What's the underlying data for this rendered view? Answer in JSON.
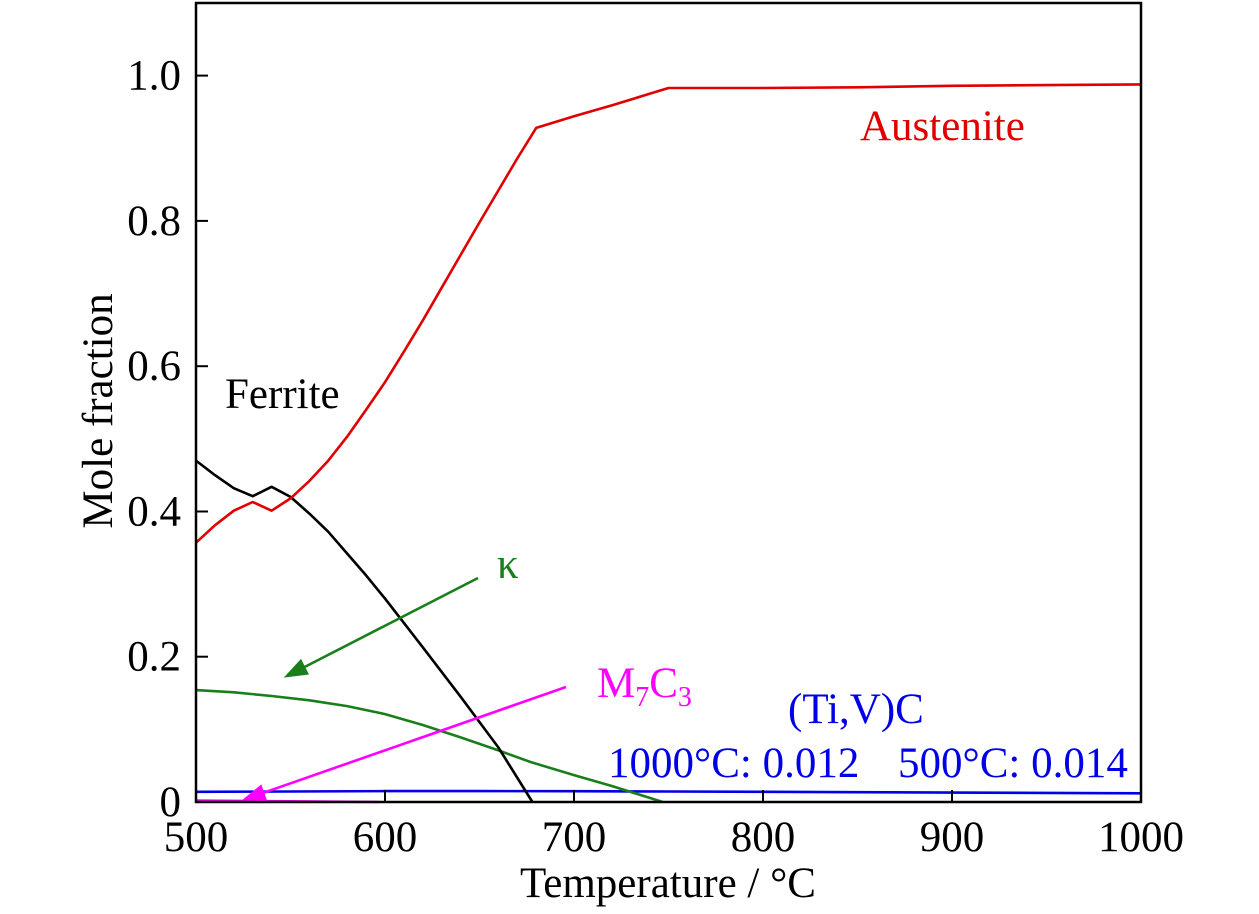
{
  "chart_data": {
    "type": "line",
    "xlabel": "Temperature / °C",
    "ylabel": "Mole fraction",
    "xlim": [
      500,
      1000
    ],
    "ylim": [
      0,
      1.1
    ],
    "xticks": [
      500,
      600,
      700,
      800,
      900,
      1000
    ],
    "xtick_labels": [
      "500",
      "600",
      "700",
      "800",
      "900",
      "1000"
    ],
    "yticks": [
      0,
      0.2,
      0.4,
      0.6,
      0.8,
      1.0
    ],
    "ytick_labels": [
      "0",
      "0.2",
      "0.4",
      "0.6",
      "0.8",
      "1.0"
    ],
    "grid": false,
    "series": [
      {
        "name": "Austenite",
        "color": "#e00000",
        "x": [
          500,
          510,
          520,
          530,
          540,
          550,
          560,
          570,
          580,
          590,
          600,
          610,
          620,
          630,
          640,
          650,
          660,
          670,
          680,
          700,
          720,
          740,
          750,
          800,
          850,
          900,
          950,
          1000
        ],
        "y": [
          0.357,
          0.381,
          0.401,
          0.413,
          0.401,
          0.418,
          0.442,
          0.47,
          0.503,
          0.54,
          0.578,
          0.62,
          0.663,
          0.708,
          0.753,
          0.798,
          0.842,
          0.886,
          0.928,
          0.944,
          0.959,
          0.975,
          0.983,
          0.983,
          0.984,
          0.986,
          0.987,
          0.988
        ]
      },
      {
        "name": "Ferrite",
        "color": "#000000",
        "x": [
          500,
          510,
          520,
          530,
          540,
          550,
          560,
          570,
          580,
          590,
          600,
          620,
          640,
          660,
          678
        ],
        "y": [
          0.47,
          0.45,
          0.432,
          0.421,
          0.434,
          0.42,
          0.397,
          0.372,
          0.342,
          0.312,
          0.28,
          0.213,
          0.145,
          0.075,
          0.0
        ]
      },
      {
        "name": "κ",
        "color": "#1a7f1a",
        "x": [
          500,
          520,
          540,
          560,
          580,
          600,
          620,
          640,
          660,
          677,
          700,
          720,
          747
        ],
        "y": [
          0.154,
          0.151,
          0.146,
          0.14,
          0.132,
          0.121,
          0.106,
          0.089,
          0.071,
          0.055,
          0.037,
          0.022,
          0.0
        ]
      },
      {
        "name": "M7C3",
        "subscript_digits": true,
        "color": "#ff00ff",
        "x": [
          500,
          550,
          597
        ],
        "y": [
          0.002,
          0.001,
          0.0
        ]
      },
      {
        "name": "(Ti,V)C",
        "color": "#0000e6",
        "x": [
          500,
          550,
          600,
          650,
          700,
          750,
          800,
          850,
          900,
          950,
          1000
        ],
        "y": [
          0.014,
          0.0145,
          0.015,
          0.015,
          0.0148,
          0.0145,
          0.014,
          0.0135,
          0.013,
          0.0125,
          0.012
        ],
        "notes": [
          "1000°C: 0.012",
          "500°C: 0.014"
        ]
      }
    ]
  }
}
